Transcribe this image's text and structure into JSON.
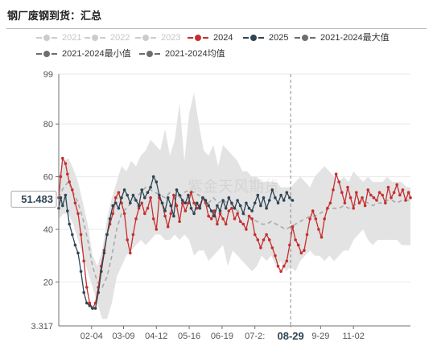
{
  "title": "钢厂废钢到货：汇总",
  "watermark": "紫金天风期货",
  "legend": [
    {
      "label": "2021",
      "color": "#cccccc",
      "text_color": "#c6c6c6",
      "active": false
    },
    {
      "label": "2022",
      "color": "#cccccc",
      "text_color": "#c6c6c6",
      "active": false
    },
    {
      "label": "2023",
      "color": "#cccccc",
      "text_color": "#c6c6c6",
      "active": false
    },
    {
      "label": "2024",
      "color": "#c62f2f",
      "text_color": "#333333",
      "active": true
    },
    {
      "label": "2025",
      "color": "#2f4554",
      "text_color": "#333333",
      "active": true
    },
    {
      "label": "2021-2024最大值",
      "color": "#6e6e6e",
      "text_color": "#333333",
      "active": true
    },
    {
      "label": "2021-2024最小值",
      "color": "#6e6e6e",
      "text_color": "#333333",
      "active": true
    },
    {
      "label": "2021-2024均值",
      "color": "#6e6e6e",
      "text_color": "#333333",
      "active": true
    }
  ],
  "colors": {
    "y2024": "#c62f2f",
    "y2025": "#2f4554",
    "band": "#e3e3e3",
    "mean": "#a9a9a9",
    "grid": "#e9e9e9"
  },
  "chart_data": {
    "type": "line",
    "x_axis": {
      "kind": "day-of-year",
      "range": [
        "01-01",
        "12-31"
      ],
      "tick_labels": [
        {
          "x": "02-04",
          "label": "02-04"
        },
        {
          "x": "03-09",
          "label": "03-09"
        },
        {
          "x": "04-12",
          "label": "04-12"
        },
        {
          "x": "05-16",
          "label": "05-16"
        },
        {
          "x": "06-19",
          "label": "06-19"
        },
        {
          "x": "07-23",
          "label": "07-2:"
        },
        {
          "x": "08-29",
          "label": "08-29"
        },
        {
          "x": "09-29",
          "label": "9-29"
        },
        {
          "x": "11-02",
          "label": "11-02"
        }
      ]
    },
    "y_axis": {
      "min": 3.317,
      "max": 99,
      "ticks": [
        20,
        40,
        60,
        80
      ],
      "min_label": "3.317",
      "max_label": "99",
      "grid": true
    },
    "pointer": {
      "x": "08-29",
      "x_label": "08-29",
      "y": 51.483,
      "y_label": "51.483"
    },
    "band_2021_2024": {
      "x": [
        "01-01",
        "01-06",
        "01-11",
        "01-16",
        "01-21",
        "01-26",
        "01-31",
        "02-05",
        "02-10",
        "02-15",
        "02-20",
        "02-25",
        "03-02",
        "03-07",
        "03-12",
        "03-17",
        "03-22",
        "03-27",
        "04-01",
        "04-06",
        "04-11",
        "04-16",
        "04-21",
        "04-26",
        "05-01",
        "05-06",
        "05-11",
        "05-16",
        "05-21",
        "05-26",
        "05-31",
        "06-05",
        "06-10",
        "06-15",
        "06-20",
        "06-25",
        "06-30",
        "07-05",
        "07-10",
        "07-15",
        "07-20",
        "07-25",
        "07-30",
        "08-04",
        "08-09",
        "08-14",
        "08-19",
        "08-24",
        "08-29",
        "09-03",
        "09-08",
        "09-13",
        "09-18",
        "09-23",
        "09-28",
        "10-03",
        "10-08",
        "10-13",
        "10-18",
        "10-23",
        "10-28",
        "11-02",
        "11-07",
        "11-12",
        "11-17",
        "11-22",
        "11-27",
        "12-02",
        "12-07",
        "12-12",
        "12-17",
        "12-22",
        "12-27",
        "12-31"
      ],
      "max": [
        60,
        66,
        67,
        63,
        58,
        50,
        42,
        30,
        26,
        32,
        44,
        52,
        58,
        64,
        62,
        66,
        64,
        68,
        70,
        74,
        72,
        70,
        78,
        68,
        74,
        88,
        66,
        84,
        92,
        80,
        70,
        68,
        72,
        64,
        72,
        70,
        68,
        66,
        62,
        62,
        60,
        60,
        58,
        58,
        58,
        58,
        56,
        56,
        56,
        58,
        60,
        58,
        56,
        60,
        62,
        64,
        62,
        60,
        58,
        60,
        58,
        62,
        60,
        58,
        60,
        58,
        58,
        58,
        60,
        58,
        58,
        58,
        56,
        56
      ],
      "min": [
        44,
        46,
        46,
        42,
        36,
        30,
        24,
        18,
        12,
        6,
        6,
        12,
        22,
        26,
        30,
        32,
        34,
        36,
        34,
        36,
        38,
        38,
        36,
        36,
        38,
        36,
        38,
        36,
        30,
        32,
        32,
        28,
        30,
        32,
        34,
        26,
        32,
        30,
        28,
        26,
        24,
        26,
        30,
        28,
        30,
        26,
        28,
        24,
        26,
        24,
        28,
        30,
        32,
        30,
        30,
        28,
        30,
        28,
        30,
        32,
        32,
        36,
        38,
        40,
        36,
        34,
        36,
        36,
        36,
        36,
        36,
        34,
        34,
        34
      ]
    },
    "series": [
      {
        "name": "2024",
        "x": [
          "01-01",
          "01-03",
          "01-05",
          "01-08",
          "01-10",
          "01-12",
          "01-15",
          "01-18",
          "01-21",
          "01-24",
          "01-27",
          "01-30",
          "02-02",
          "02-05",
          "02-08",
          "02-11",
          "02-14",
          "02-17",
          "02-20",
          "02-23",
          "02-26",
          "03-01",
          "03-04",
          "03-07",
          "03-10",
          "03-13",
          "03-16",
          "03-19",
          "03-22",
          "03-25",
          "03-28",
          "03-31",
          "04-03",
          "04-06",
          "04-09",
          "04-12",
          "04-15",
          "04-18",
          "04-21",
          "04-24",
          "04-27",
          "04-30",
          "05-03",
          "05-06",
          "05-09",
          "05-12",
          "05-15",
          "05-18",
          "05-21",
          "05-24",
          "05-27",
          "05-30",
          "06-02",
          "06-05",
          "06-08",
          "06-11",
          "06-14",
          "06-17",
          "06-20",
          "06-23",
          "06-26",
          "06-29",
          "07-02",
          "07-05",
          "07-08",
          "07-11",
          "07-14",
          "07-17",
          "07-20",
          "07-23",
          "07-26",
          "07-29",
          "08-01",
          "08-04",
          "08-07",
          "08-10",
          "08-13",
          "08-16",
          "08-19",
          "08-22",
          "08-25",
          "08-28",
          "08-31",
          "09-03",
          "09-06",
          "09-09",
          "09-12",
          "09-15",
          "09-18",
          "09-21",
          "09-24",
          "09-27",
          "09-30",
          "10-03",
          "10-06",
          "10-09",
          "10-12",
          "10-15",
          "10-18",
          "10-21",
          "10-24",
          "10-27",
          "10-30",
          "11-02",
          "11-05",
          "11-08",
          "11-11",
          "11-14",
          "11-17",
          "11-20",
          "11-23",
          "11-26",
          "11-29",
          "12-02",
          "12-05",
          "12-08",
          "12-11",
          "12-14",
          "12-17",
          "12-20",
          "12-23",
          "12-26",
          "12-29",
          "12-31"
        ],
        "values": [
          52,
          60,
          67,
          65,
          61,
          58,
          55,
          50,
          46,
          38,
          28,
          18,
          12,
          10,
          12,
          18,
          26,
          32,
          38,
          42,
          46,
          52,
          54,
          50,
          46,
          36,
          31,
          38,
          44,
          48,
          50,
          46,
          48,
          52,
          44,
          40,
          52,
          50,
          45,
          41,
          46,
          53,
          49,
          43,
          50,
          47,
          50,
          54,
          50,
          48,
          49,
          52,
          50,
          45,
          44,
          47,
          42,
          46,
          44,
          42,
          47,
          48,
          44,
          46,
          43,
          42,
          40,
          45,
          44,
          38,
          36,
          33,
          36,
          38,
          36,
          33,
          30,
          26,
          24,
          26,
          28,
          34,
          41,
          36,
          34,
          31,
          32,
          38,
          44,
          47,
          44,
          40,
          37,
          44,
          48,
          50,
          55,
          61,
          58,
          54,
          50,
          56,
          52,
          48,
          54,
          50,
          52,
          49,
          55,
          53,
          52,
          51,
          54,
          53,
          50,
          56,
          52,
          54,
          57,
          53,
          55,
          51,
          54,
          52
        ]
      },
      {
        "name": "2025",
        "x": [
          "01-01",
          "01-03",
          "01-05",
          "01-08",
          "01-10",
          "01-12",
          "01-15",
          "01-18",
          "01-21",
          "01-24",
          "01-27",
          "01-30",
          "02-02",
          "02-05",
          "02-08",
          "02-11",
          "02-14",
          "02-17",
          "02-20",
          "02-23",
          "02-26",
          "03-01",
          "03-04",
          "03-07",
          "03-10",
          "03-13",
          "03-16",
          "03-19",
          "03-22",
          "03-25",
          "03-28",
          "03-31",
          "04-03",
          "04-06",
          "04-09",
          "04-12",
          "04-15",
          "04-18",
          "04-21",
          "04-24",
          "04-27",
          "04-30",
          "05-03",
          "05-06",
          "05-09",
          "05-12",
          "05-15",
          "05-18",
          "05-21",
          "05-24",
          "05-27",
          "05-30",
          "06-02",
          "06-05",
          "06-08",
          "06-11",
          "06-14",
          "06-17",
          "06-20",
          "06-23",
          "06-26",
          "06-29",
          "07-02",
          "07-05",
          "07-08",
          "07-11",
          "07-14",
          "07-17",
          "07-20",
          "07-23",
          "07-26",
          "07-29",
          "08-01",
          "08-04",
          "08-07",
          "08-10",
          "08-13",
          "08-16",
          "08-19",
          "08-22",
          "08-25",
          "08-28",
          "08-31"
        ],
        "values": [
          48,
          52,
          49,
          53,
          47,
          42,
          38,
          34,
          31,
          24,
          16,
          12,
          11,
          10,
          10,
          16,
          24,
          31,
          38,
          44,
          49,
          50,
          48,
          52,
          55,
          53,
          50,
          53,
          51,
          49,
          55,
          52,
          54,
          56,
          60,
          58,
          53,
          50,
          47,
          52,
          49,
          45,
          55,
          53,
          51,
          50,
          53,
          48,
          46,
          50,
          48,
          52,
          51,
          49,
          47,
          45,
          49,
          47,
          51,
          48,
          52,
          50,
          48,
          51,
          49,
          46,
          50,
          48,
          47,
          50,
          53,
          49,
          52,
          48,
          51,
          55,
          52,
          50,
          53,
          51,
          54,
          52,
          51
        ]
      },
      {
        "name": "2021-2024均值",
        "x": [
          "01-01",
          "01-06",
          "01-11",
          "01-16",
          "01-21",
          "01-26",
          "01-31",
          "02-05",
          "02-10",
          "02-15",
          "02-20",
          "02-25",
          "03-02",
          "03-07",
          "03-12",
          "03-17",
          "03-22",
          "03-27",
          "04-01",
          "04-06",
          "04-11",
          "04-16",
          "04-21",
          "04-26",
          "05-01",
          "05-06",
          "05-11",
          "05-16",
          "05-21",
          "05-26",
          "05-31",
          "06-05",
          "06-10",
          "06-15",
          "06-20",
          "06-25",
          "06-30",
          "07-05",
          "07-10",
          "07-15",
          "07-20",
          "07-25",
          "07-30",
          "08-04",
          "08-09",
          "08-14",
          "08-19",
          "08-24",
          "08-29",
          "09-03",
          "09-08",
          "09-13",
          "09-18",
          "09-23",
          "09-28",
          "10-03",
          "10-08",
          "10-13",
          "10-18",
          "10-23",
          "10-28",
          "11-02",
          "11-07",
          "11-12",
          "11-17",
          "11-22",
          "11-27",
          "12-02",
          "12-07",
          "12-12",
          "12-17",
          "12-22",
          "12-27",
          "12-31"
        ],
        "values": [
          52,
          56,
          58,
          54,
          50,
          44,
          36,
          26,
          20,
          18,
          22,
          30,
          40,
          46,
          48,
          50,
          52,
          54,
          56,
          55,
          54,
          53,
          52,
          54,
          53,
          52,
          54,
          55,
          54,
          53,
          52,
          50,
          52,
          50,
          51,
          50,
          49,
          47,
          46,
          45,
          44,
          43,
          42,
          42,
          43,
          42,
          41,
          40,
          41,
          42,
          43,
          44,
          45,
          45,
          46,
          47,
          48,
          48,
          48,
          49,
          48,
          49,
          50,
          51,
          50,
          49,
          50,
          50,
          51,
          51,
          50,
          51,
          51,
          51
        ]
      }
    ]
  }
}
